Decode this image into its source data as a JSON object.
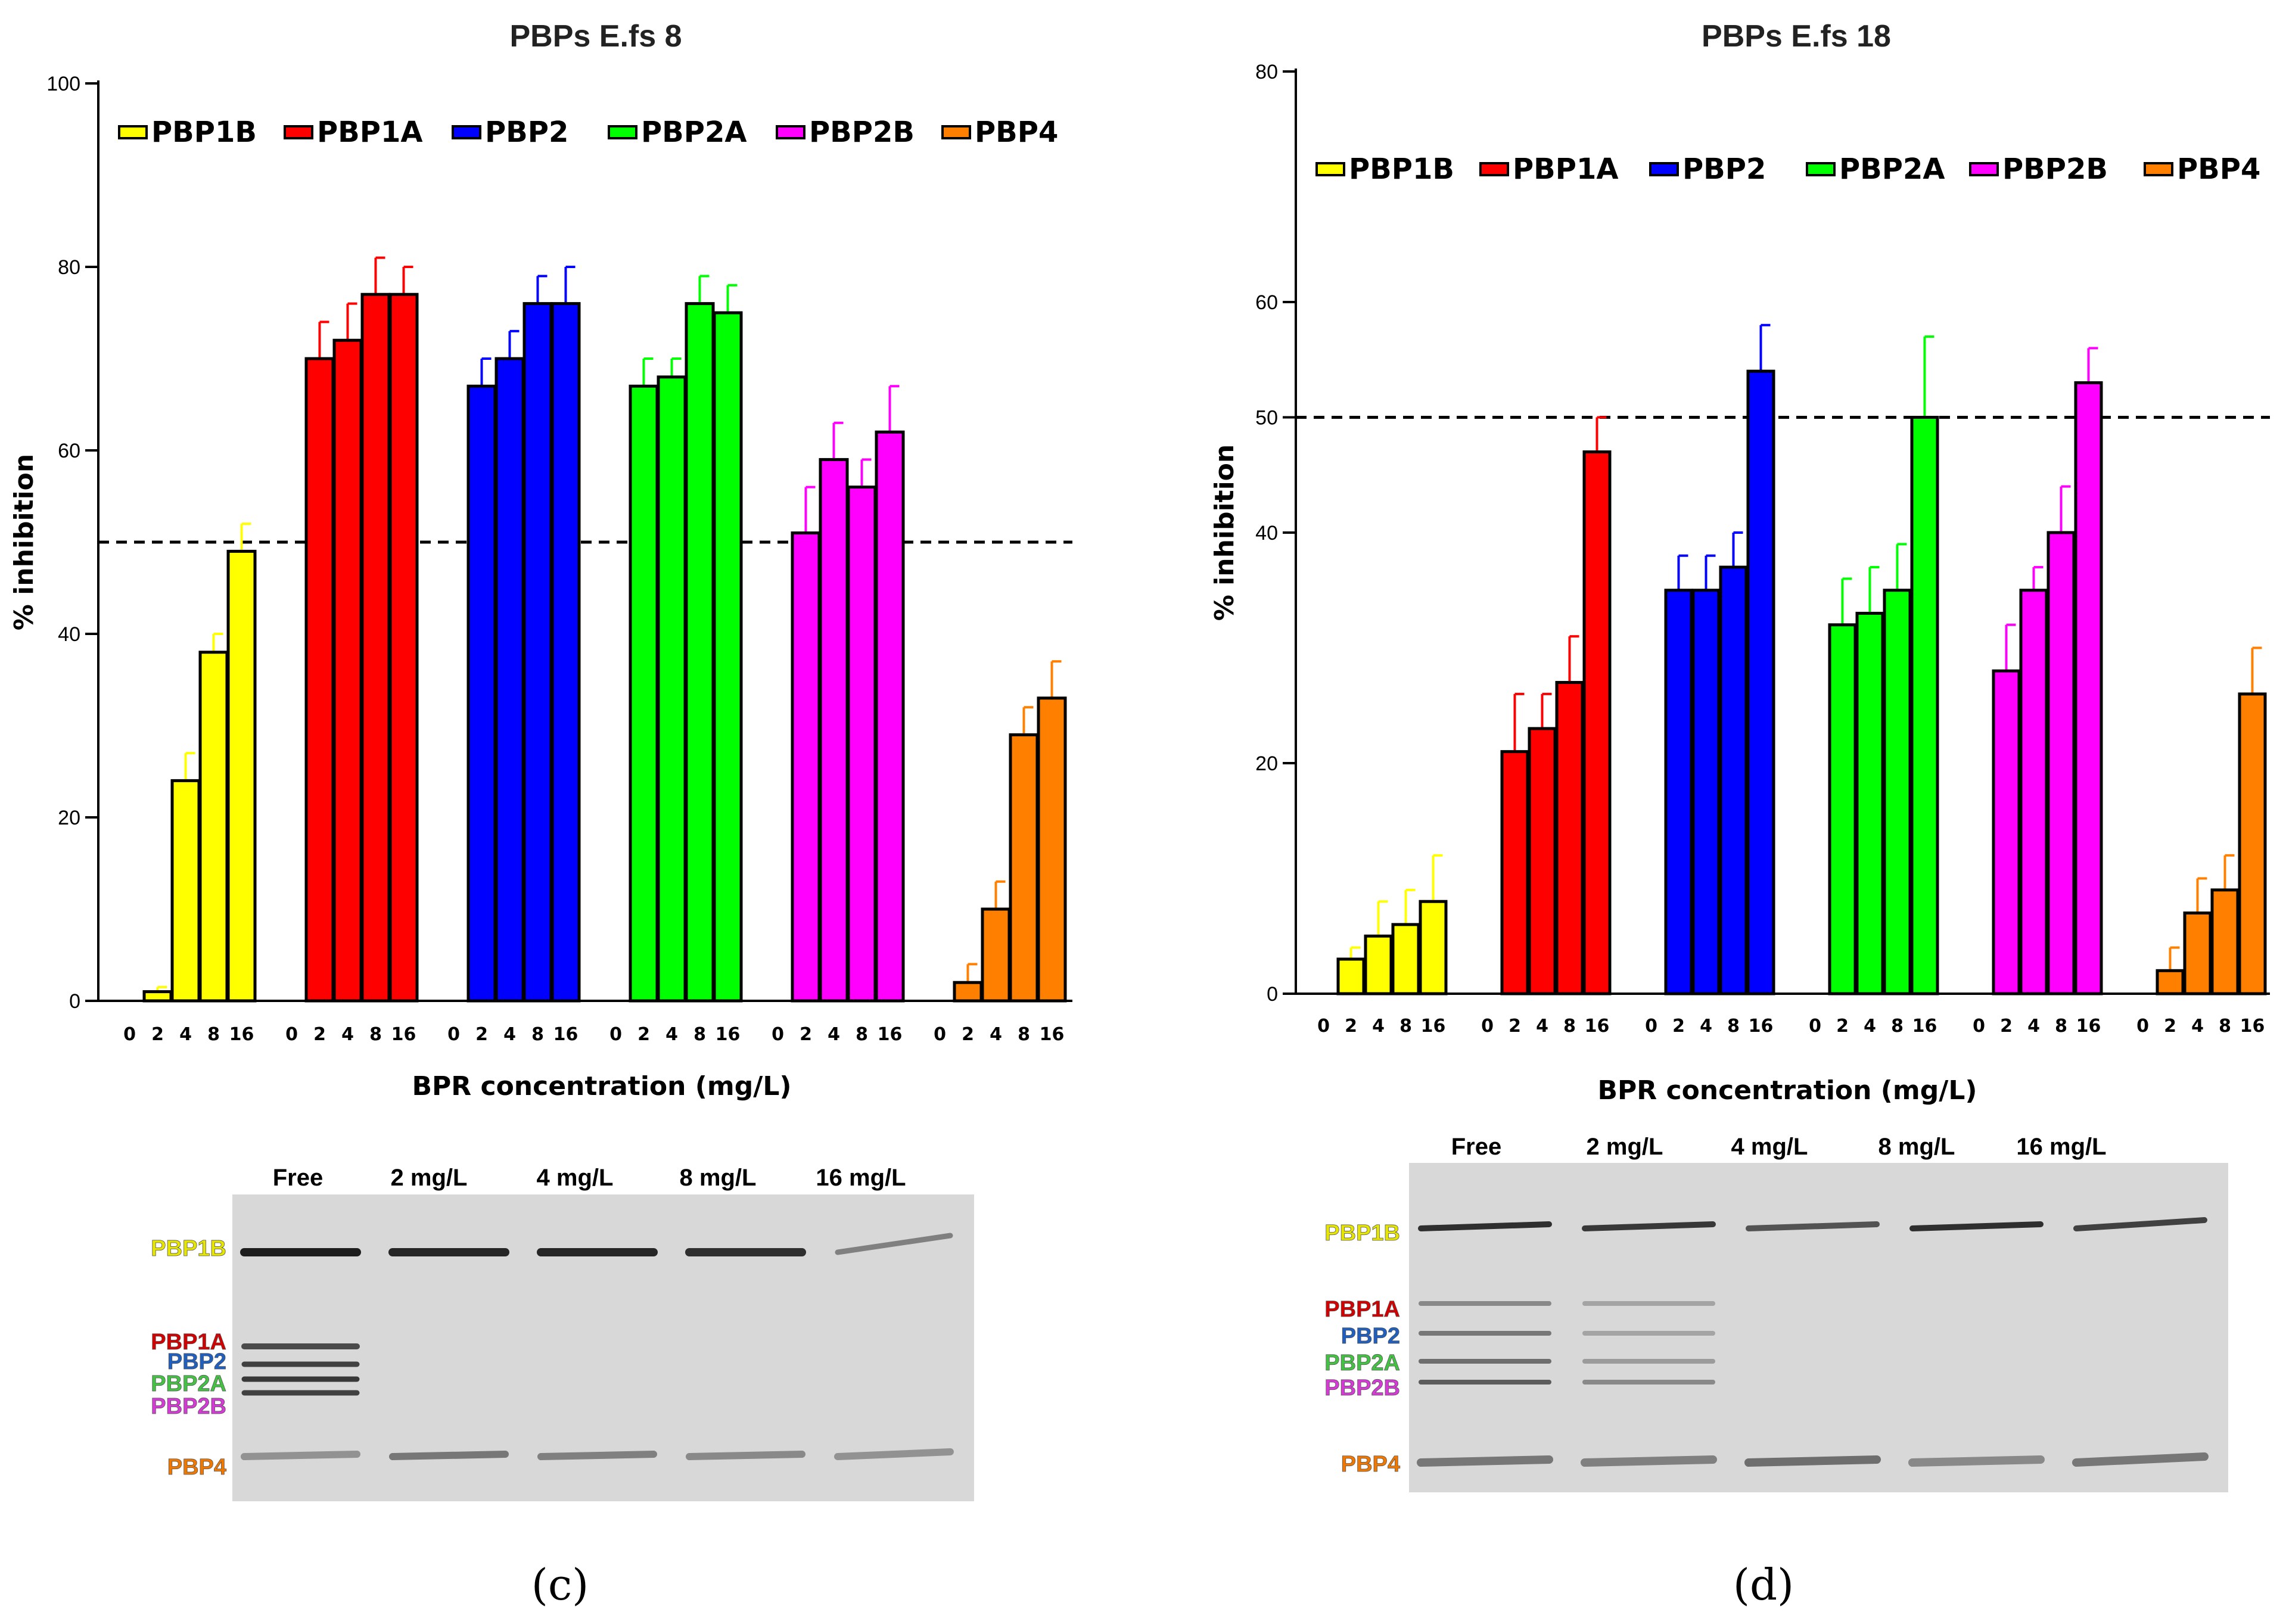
{
  "chart_data": [
    {
      "type": "bar",
      "panel": "c",
      "panel_label": "(c)",
      "title": "PBPs E.fs 8",
      "xlabel": "BPR concentration (mg/L)",
      "ylabel": "% inhibition",
      "ylim": [
        0,
        100
      ],
      "y_ticks": [
        0,
        20,
        40,
        60,
        80,
        100
      ],
      "tick_labels": [
        "0",
        "2",
        "4",
        "8",
        "16"
      ],
      "reference_line": 50,
      "legend_placement": "top",
      "series": [
        {
          "name": "PBP1B",
          "color": "#ffff00",
          "values": [
            0,
            1,
            24,
            38,
            49
          ],
          "errors": [
            0,
            0.5,
            3,
            2,
            3
          ]
        },
        {
          "name": "PBP1A",
          "color": "#ff0000",
          "values": [
            0,
            70,
            72,
            77,
            77
          ],
          "errors": [
            0,
            4,
            4,
            4,
            3
          ]
        },
        {
          "name": "PBP2",
          "color": "#0000ff",
          "values": [
            0,
            67,
            70,
            76,
            76
          ],
          "errors": [
            0,
            3,
            3,
            3,
            4
          ]
        },
        {
          "name": "PBP2A",
          "color": "#00ff00",
          "values": [
            0,
            67,
            68,
            76,
            75
          ],
          "errors": [
            0,
            3,
            2,
            3,
            3
          ]
        },
        {
          "name": "PBP2B",
          "color": "#ff00ff",
          "values": [
            0,
            51,
            59,
            56,
            62
          ],
          "errors": [
            0,
            5,
            4,
            3,
            5
          ]
        },
        {
          "name": "PBP4",
          "color": "#ff8000",
          "values": [
            0,
            2,
            10,
            29,
            33
          ],
          "errors": [
            0,
            2,
            3,
            3,
            4
          ]
        }
      ]
    },
    {
      "type": "bar",
      "panel": "d",
      "panel_label": "(d)",
      "title": "PBPs E.fs 18",
      "xlabel": "BPR concentration (mg/L)",
      "ylabel": "% inhibition",
      "ylim": [
        0,
        80
      ],
      "y_ticks": [
        0,
        20,
        40,
        50,
        60,
        80
      ],
      "tick_labels": [
        "0",
        "2",
        "4",
        "8",
        "16"
      ],
      "reference_line": 50,
      "legend_placement": "top",
      "series": [
        {
          "name": "PBP1B",
          "color": "#ffff00",
          "values": [
            0,
            3,
            5,
            6,
            8
          ],
          "errors": [
            0,
            1,
            3,
            3,
            4
          ]
        },
        {
          "name": "PBP1A",
          "color": "#ff0000",
          "values": [
            0,
            21,
            23,
            27,
            47
          ],
          "errors": [
            0,
            5,
            3,
            4,
            3
          ]
        },
        {
          "name": "PBP2",
          "color": "#0000ff",
          "values": [
            0,
            35,
            35,
            37,
            54
          ],
          "errors": [
            0,
            3,
            3,
            3,
            4
          ]
        },
        {
          "name": "PBP2A",
          "color": "#00ff00",
          "values": [
            0,
            32,
            33,
            35,
            50
          ],
          "errors": [
            0,
            4,
            4,
            4,
            7
          ]
        },
        {
          "name": "PBP2B",
          "color": "#ff00ff",
          "values": [
            0,
            28,
            35,
            40,
            53
          ],
          "errors": [
            0,
            4,
            2,
            4,
            3
          ]
        },
        {
          "name": "PBP4",
          "color": "#ff8000",
          "values": [
            0,
            2,
            7,
            9,
            26
          ],
          "errors": [
            0,
            2,
            3,
            3,
            4
          ]
        }
      ]
    }
  ],
  "gels": [
    {
      "panel": "c",
      "lanes": [
        "Free",
        "2 mg/L",
        "4 mg/L",
        "8 mg/L",
        "16 mg/L"
      ],
      "band_labels": [
        {
          "name": "PBP1B",
          "color": "#e6e600"
        },
        {
          "name": "PBP1A",
          "color": "#d40000"
        },
        {
          "name": "PBP2",
          "color": "#1f5fbf"
        },
        {
          "name": "PBP2A",
          "color": "#44c244"
        },
        {
          "name": "PBP2B",
          "color": "#d63ad6"
        },
        {
          "name": "PBP4",
          "color": "#f07800"
        }
      ]
    },
    {
      "panel": "d",
      "lanes": [
        "Free",
        "2 mg/L",
        "4 mg/L",
        "8 mg/L",
        "16 mg/L"
      ],
      "band_labels": [
        {
          "name": "PBP1B",
          "color": "#e6e600"
        },
        {
          "name": "PBP1A",
          "color": "#d40000"
        },
        {
          "name": "PBP2",
          "color": "#1f5fbf"
        },
        {
          "name": "PBP2A",
          "color": "#44c244"
        },
        {
          "name": "PBP2B",
          "color": "#d63ad6"
        },
        {
          "name": "PBP4",
          "color": "#f07800"
        }
      ]
    }
  ]
}
